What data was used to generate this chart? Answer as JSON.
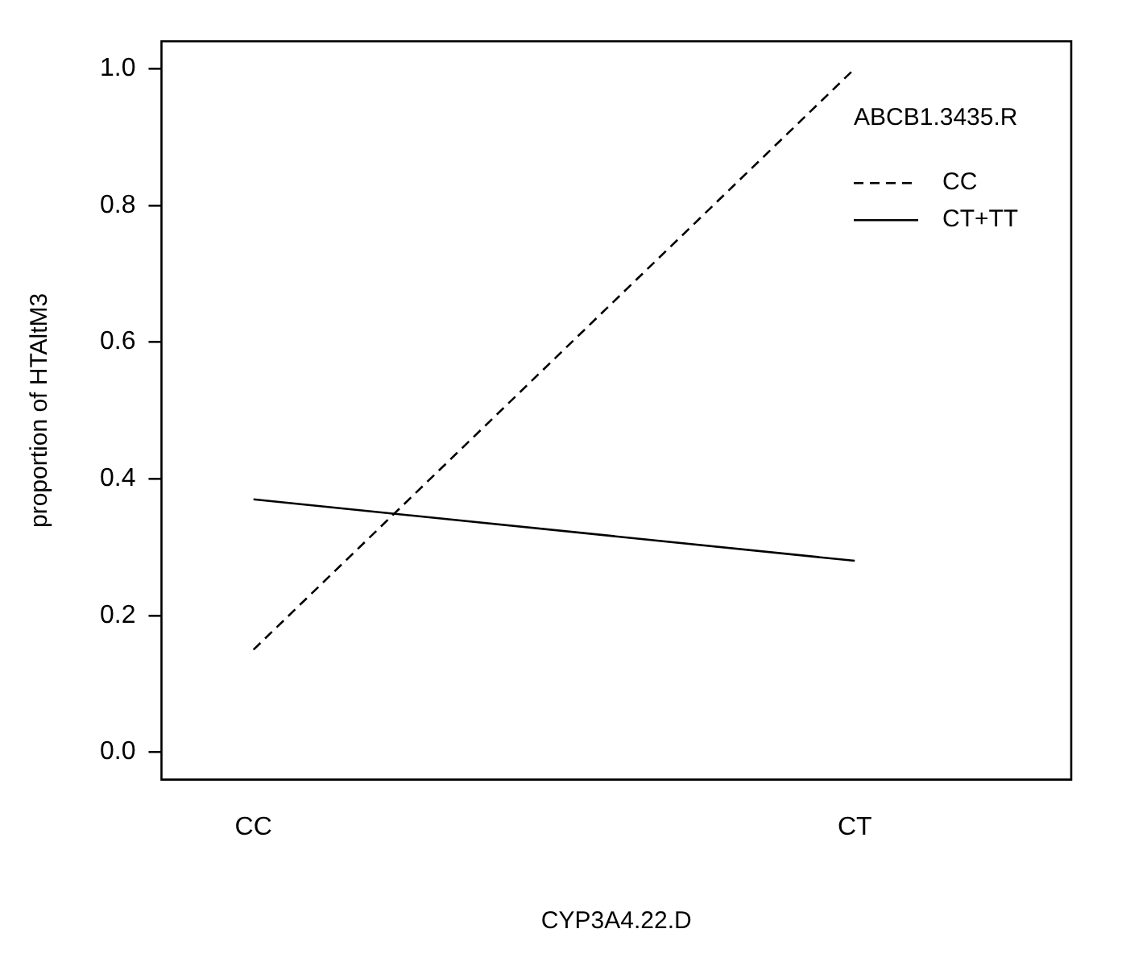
{
  "chart_data": {
    "type": "line",
    "xlabel": "CYP3A4.22.D",
    "ylabel": "proportion of HTAltM3",
    "legend_title": "ABCB1.3435.R",
    "categories": [
      "CC",
      "CT"
    ],
    "series": [
      {
        "name": "CC",
        "color": "#000000",
        "line_style": "dashed",
        "values": [
          0.15,
          1.0
        ]
      },
      {
        "name": "CT+TT",
        "color": "#000000",
        "line_style": "solid",
        "values": [
          0.37,
          0.28
        ]
      }
    ],
    "ylim": [
      -0.04,
      1.04
    ],
    "yticks": [
      {
        "value": 0,
        "label": "0.0"
      },
      {
        "value": 0.2,
        "label": "0.2"
      },
      {
        "value": 0.4,
        "label": "0.4"
      },
      {
        "value": 0.6,
        "label": "0.6"
      },
      {
        "value": 0.8,
        "label": "0.8"
      },
      {
        "value": 1,
        "label": "1.0"
      }
    ],
    "grid": false,
    "legend": "top right",
    "marker": "none"
  }
}
